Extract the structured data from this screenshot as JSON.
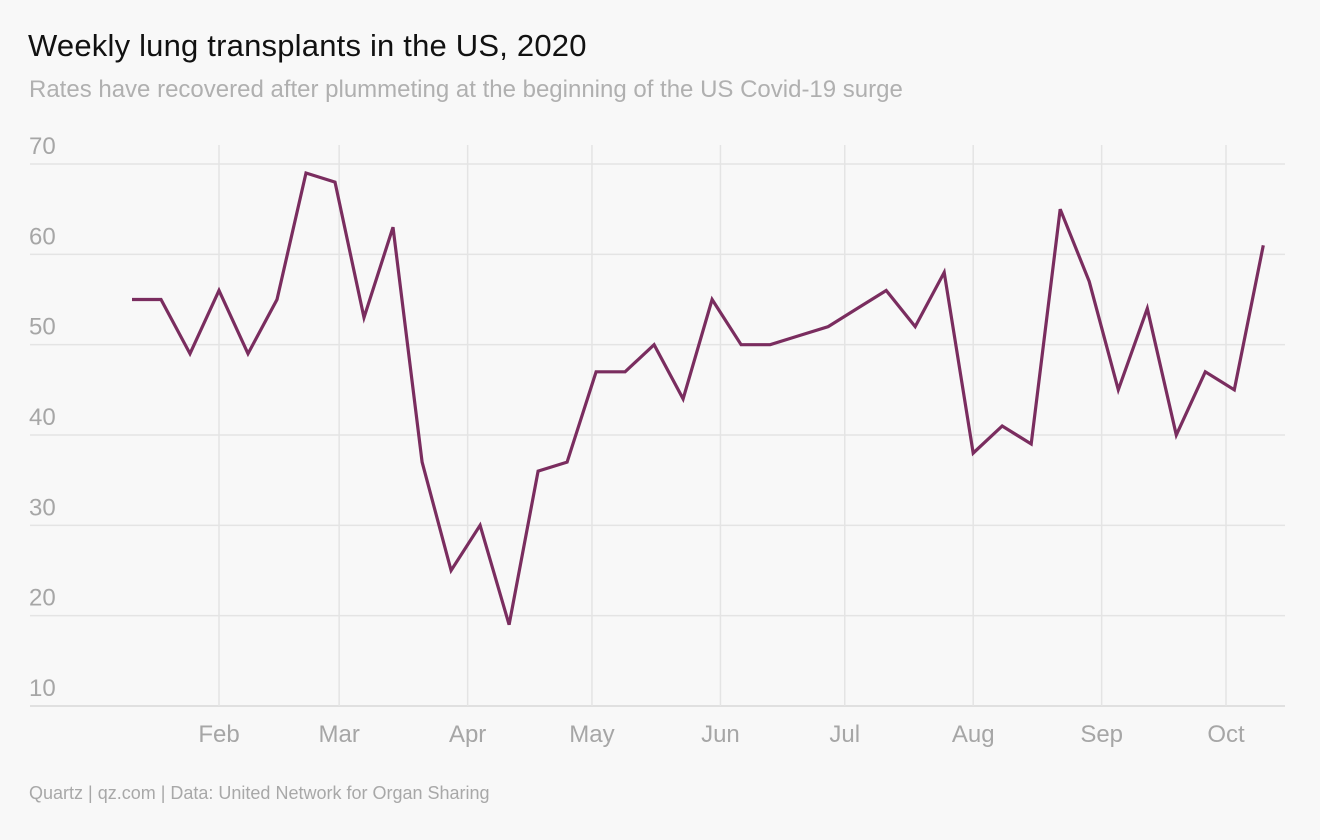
{
  "title": "Weekly lung transplants in the US, 2020",
  "subtitle": "Rates have recovered after plummeting at the beginning of the US Covid-19 surge",
  "source": "Quartz | qz.com | Data: United Network for Organ Sharing",
  "colors": {
    "line": "#7a2d5f",
    "grid": "#e4e4e4",
    "tick_text": "#a6a6a6",
    "background": "#f8f8f8"
  },
  "chart_data": {
    "type": "line",
    "title": "Weekly lung transplants in the US, 2020",
    "subtitle": "Rates have recovered after plummeting at the beginning of the US Covid-19 surge",
    "xlabel": "",
    "ylabel": "",
    "ylim": [
      10,
      70
    ],
    "xlim": [
      "2020-01-01",
      "2020-10-13"
    ],
    "yticks": [
      10,
      20,
      30,
      40,
      50,
      60,
      70
    ],
    "xticks": [
      {
        "label": "Feb",
        "date": "2020-02-01"
      },
      {
        "label": "Mar",
        "date": "2020-03-01"
      },
      {
        "label": "Apr",
        "date": "2020-04-01"
      },
      {
        "label": "May",
        "date": "2020-05-01"
      },
      {
        "label": "Jun",
        "date": "2020-06-01"
      },
      {
        "label": "Jul",
        "date": "2020-07-01"
      },
      {
        "label": "Aug",
        "date": "2020-08-01"
      },
      {
        "label": "Sep",
        "date": "2020-09-01"
      },
      {
        "label": "Oct",
        "date": "2020-10-01"
      }
    ],
    "grid": true,
    "legend": "none",
    "series": [
      {
        "x": [
          "2020-01-11",
          "2020-01-18",
          "2020-01-25",
          "2020-02-01",
          "2020-02-08",
          "2020-02-15",
          "2020-02-22",
          "2020-02-29",
          "2020-03-07",
          "2020-03-14",
          "2020-03-21",
          "2020-03-28",
          "2020-04-04",
          "2020-04-11",
          "2020-04-18",
          "2020-04-25",
          "2020-05-02",
          "2020-05-09",
          "2020-05-16",
          "2020-05-23",
          "2020-05-30",
          "2020-06-06",
          "2020-06-13",
          "2020-06-20",
          "2020-06-27",
          "2020-07-04",
          "2020-07-11",
          "2020-07-18",
          "2020-07-25",
          "2020-08-01",
          "2020-08-08",
          "2020-08-15",
          "2020-08-22",
          "2020-08-29",
          "2020-09-05",
          "2020-09-12",
          "2020-09-19",
          "2020-09-26",
          "2020-10-03",
          "2020-10-10"
        ],
        "values": [
          55,
          55,
          49,
          56,
          49,
          55,
          69,
          68,
          53,
          63,
          37,
          25,
          30,
          19,
          36,
          37,
          47,
          47,
          50,
          44,
          55,
          50,
          50,
          51,
          52,
          54,
          56,
          52,
          58,
          38,
          41,
          39,
          65,
          57,
          45,
          54,
          40,
          47,
          45,
          61
        ]
      }
    ]
  }
}
